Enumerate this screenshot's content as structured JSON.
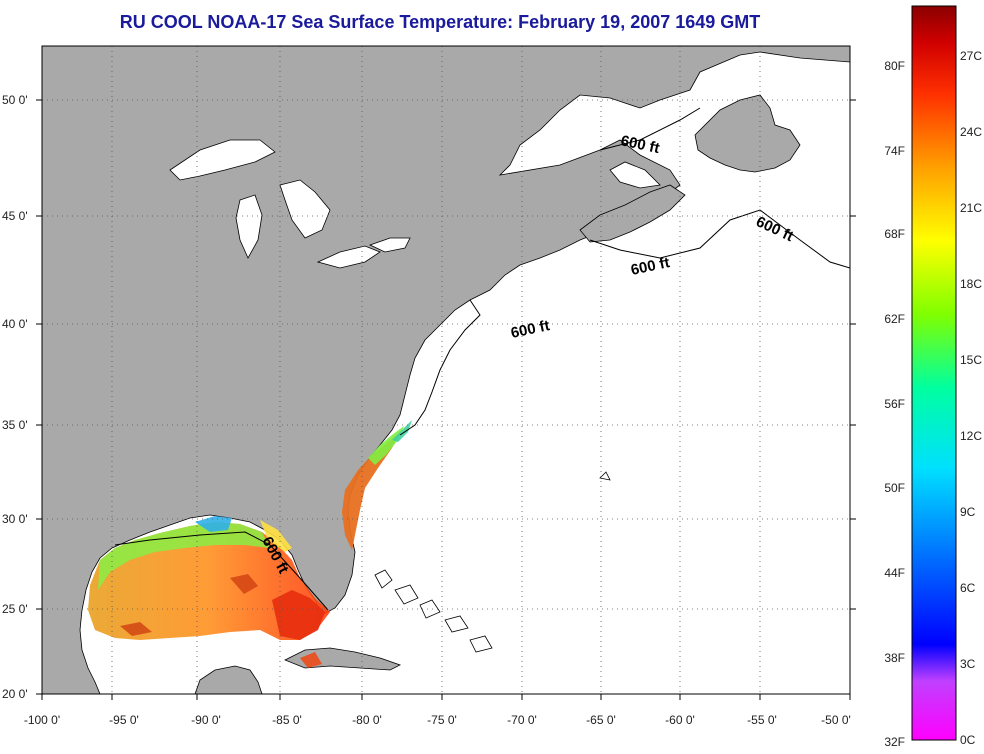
{
  "title": "RU COOL  NOAA-17  Sea Surface Temperature:  February 19, 2007 1649 GMT",
  "x_axis": {
    "ticks": [
      "-100 0'",
      "-95 0'",
      "-90 0'",
      "-85 0'",
      "-80 0'",
      "-75 0'",
      "-70 0'",
      "-65 0'",
      "-60 0'",
      "-55 0'",
      "-50 0'"
    ]
  },
  "y_axis": {
    "ticks": [
      "50 0'",
      "45 0'",
      "40 0'",
      "35 0'",
      "30 0'",
      "25 0'",
      "20 0'"
    ]
  },
  "isobath_label": "600 ft",
  "colorbar": {
    "fahrenheit": [
      "80F",
      "74F",
      "68F",
      "62F",
      "56F",
      "50F",
      "44F",
      "38F",
      "32F"
    ],
    "celsius": [
      "27C",
      "24C",
      "21C",
      "18C",
      "15C",
      "12C",
      "9C",
      "6C",
      "3C",
      "0C"
    ],
    "colors": [
      "#8b0000",
      "#ff0000",
      "#ff8000",
      "#ffff00",
      "#80ff00",
      "#00ff80",
      "#00ffff",
      "#0080ff",
      "#0000ff",
      "#8000ff",
      "#ff00ff"
    ]
  },
  "colors": {
    "land": "#a9a9a9",
    "ocean": "#ffffff",
    "title": "#1a1a9c"
  }
}
